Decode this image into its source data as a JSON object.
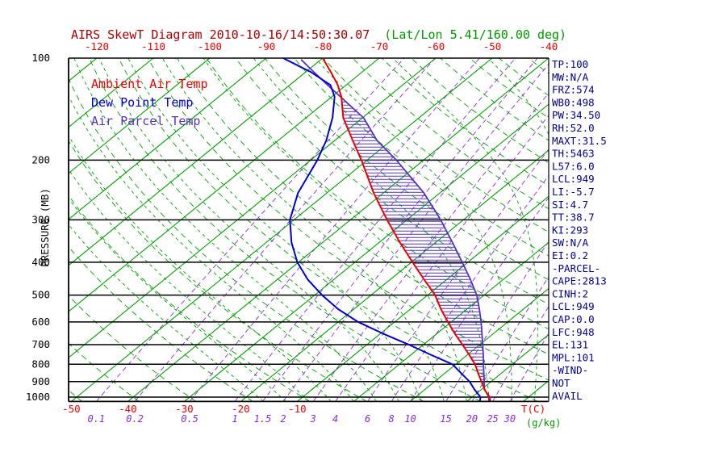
{
  "title": {
    "main": "AIRS SkewT Diagram 2010-10-16/14:50:30.07",
    "latlon": "(Lat/Lon 5.41/160.00 deg)"
  },
  "legend": [
    {
      "label": "Ambient Air Temp",
      "color": "#ee0000"
    },
    {
      "label": "Dew Point Temp",
      "color": "#0000cc"
    },
    {
      "label": "Air Parcel Temp",
      "color": "#5533bb"
    }
  ],
  "axes": {
    "pressure_axis_label": "PRESSURE (MB)",
    "pressure_ticks": [
      100,
      200,
      300,
      400,
      500,
      600,
      700,
      800,
      900,
      1000
    ],
    "top_temp_ticks": [
      -120,
      -110,
      -100,
      -90,
      -80,
      -70,
      -60,
      -50,
      -40
    ],
    "bottom_temp_ticks": [
      -50,
      -40,
      -30,
      -20,
      -10
    ],
    "temp_unit_label": "T(C)",
    "mixing_unit_label": "(g/kg)"
  },
  "stats_panel": {
    "lines": [
      "TP:100",
      "MW:N/A",
      "FRZ:574",
      "WB0:498",
      "PW:34.50",
      "RH:52.0",
      "MAXT:31.5",
      "TH:5463",
      "L57:6.0",
      "LCL:949",
      "LI:-5.7",
      "SI:4.7",
      "TT:38.7",
      "KI:293",
      "SW:N/A",
      "EI:0.2",
      "-PARCEL-",
      "CAPE:2813",
      "CINH:2",
      "LCL:949",
      "CAP:0.0",
      "LFC:948",
      "EL:131",
      "MPL:101",
      "-WIND-",
      "NOT",
      "AVAIL"
    ]
  },
  "colors": {
    "isotherm": "#00a000",
    "adiabat": "#00a000",
    "mixing": "#8a2be2",
    "pressure_line": "#000000",
    "ambient": "#ee0000",
    "dewpoint": "#0000cc",
    "parcel": "#5533bb",
    "hatch": "#5533bb",
    "stats_text": "#00008b",
    "red_labels": "#ee0000",
    "black_labels": "#000000",
    "title_main": "#aa0000",
    "title_latlon": "#009900",
    "gkg_label": "#009900"
  },
  "chart_data": {
    "type": "line",
    "projection": "skew-t-log-p",
    "pressure_range_mb": [
      100,
      1030
    ],
    "temp_axis_top_c": [
      -120,
      -40
    ],
    "temp_axis_bottom_c": [
      -50,
      -10
    ],
    "isotherms_c": {
      "min": -120,
      "max": 30,
      "step": 10
    },
    "dry_adiabats_c": {
      "min": -50,
      "max": 180,
      "step": 10
    },
    "moist_adiabats_c": {
      "min": -16,
      "max": 40,
      "step": 4
    },
    "mixing_ratio_g_kg": [
      0.1,
      0.2,
      0.5,
      1,
      1.5,
      2,
      3,
      4,
      6,
      8,
      10,
      15,
      20,
      25,
      30
    ],
    "series": [
      {
        "name": "Ambient Air Temp",
        "color": "#ee0000",
        "points": [
          [
            1025,
            23.8
          ],
          [
            1000,
            23.0
          ],
          [
            950,
            20.6
          ],
          [
            900,
            18.3
          ],
          [
            850,
            15.9
          ],
          [
            800,
            13.4
          ],
          [
            750,
            10.3
          ],
          [
            700,
            6.9
          ],
          [
            650,
            3.2
          ],
          [
            600,
            -0.6
          ],
          [
            550,
            -4.6
          ],
          [
            500,
            -8.7
          ],
          [
            450,
            -14.0
          ],
          [
            400,
            -19.8
          ],
          [
            350,
            -26.3
          ],
          [
            300,
            -33.5
          ],
          [
            250,
            -41.7
          ],
          [
            200,
            -51.0
          ],
          [
            175,
            -56.8
          ],
          [
            150,
            -63.4
          ],
          [
            130,
            -68.3
          ],
          [
            120,
            -71.5
          ],
          [
            110,
            -75.5
          ],
          [
            100,
            -80.0
          ]
        ]
      },
      {
        "name": "Dew Point Temp",
        "color": "#0000cc",
        "points": [
          [
            1025,
            22.2
          ],
          [
            1000,
            21.5
          ],
          [
            950,
            18.8
          ],
          [
            900,
            16.2
          ],
          [
            850,
            12.9
          ],
          [
            800,
            9.4
          ],
          [
            750,
            3.5
          ],
          [
            700,
            -2.6
          ],
          [
            650,
            -9.5
          ],
          [
            600,
            -16.5
          ],
          [
            550,
            -22.8
          ],
          [
            500,
            -28.7
          ],
          [
            450,
            -34.6
          ],
          [
            400,
            -40.2
          ],
          [
            350,
            -45.5
          ],
          [
            300,
            -50.7
          ],
          [
            250,
            -55.1
          ],
          [
            200,
            -58.8
          ],
          [
            175,
            -61.5
          ],
          [
            150,
            -65.3
          ],
          [
            130,
            -69.5
          ],
          [
            120,
            -72.8
          ],
          [
            110,
            -79.0
          ],
          [
            100,
            -87.0
          ]
        ]
      },
      {
        "name": "Air Parcel Temp",
        "color": "#5533bb",
        "points": [
          [
            1025,
            24.0
          ],
          [
            1000,
            23.2
          ],
          [
            949,
            20.5
          ],
          [
            900,
            18.8
          ],
          [
            850,
            16.9
          ],
          [
            800,
            14.9
          ],
          [
            750,
            12.8
          ],
          [
            700,
            10.5
          ],
          [
            650,
            8.0
          ],
          [
            600,
            5.3
          ],
          [
            550,
            2.2
          ],
          [
            500,
            -1.3
          ],
          [
            450,
            -5.8
          ],
          [
            400,
            -11.0
          ],
          [
            350,
            -17.0
          ],
          [
            300,
            -24.0
          ],
          [
            250,
            -32.8
          ],
          [
            200,
            -44.8
          ],
          [
            175,
            -52.5
          ],
          [
            150,
            -59.8
          ],
          [
            131,
            -68.0
          ],
          [
            120,
            -73.3
          ],
          [
            110,
            -78.5
          ],
          [
            101,
            -83.5
          ]
        ]
      }
    ],
    "cape_hatch": {
      "between": [
        "Air Parcel Temp",
        "Ambient Air Temp"
      ],
      "from_mb": 948,
      "to_mb": 131
    }
  }
}
